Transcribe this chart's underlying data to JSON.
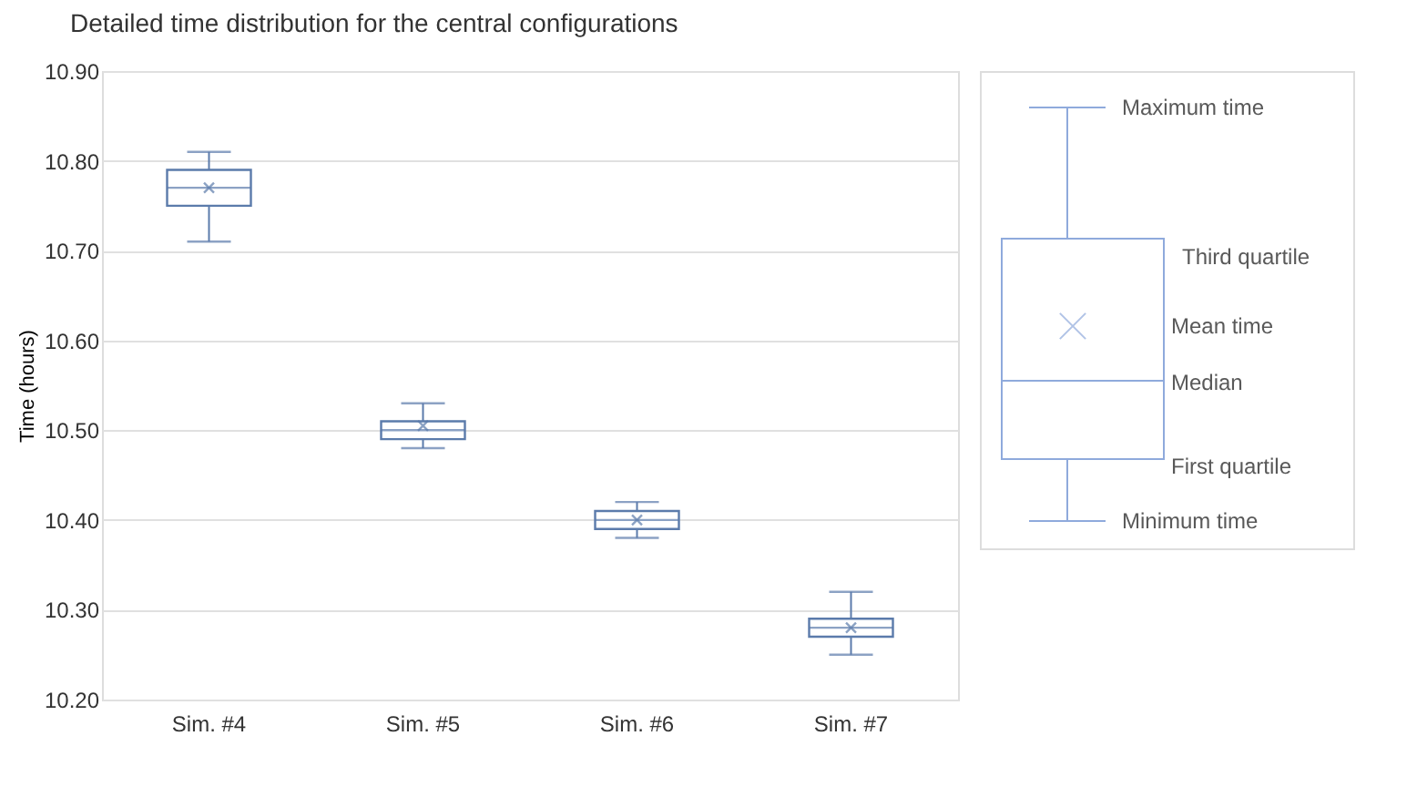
{
  "chart_data": {
    "type": "box",
    "title": "Detailed time distribution for the central configurations",
    "ylabel": "Time (hours)",
    "categories": [
      "Sim. #4",
      "Sim. #5",
      "Sim. #6",
      "Sim. #7"
    ],
    "boxes": [
      {
        "low": 10.71,
        "q1": 10.75,
        "median": 10.77,
        "q3": 10.79,
        "high": 10.81,
        "mean": 10.77
      },
      {
        "low": 10.48,
        "q1": 10.49,
        "median": 10.5,
        "q3": 10.51,
        "high": 10.53,
        "mean": 10.505
      },
      {
        "low": 10.38,
        "q1": 10.39,
        "median": 10.4,
        "q3": 10.41,
        "high": 10.42,
        "mean": 10.4
      },
      {
        "low": 10.25,
        "q1": 10.27,
        "median": 10.28,
        "q3": 10.29,
        "high": 10.32,
        "mean": 10.28
      }
    ],
    "color": "#5b7bab",
    "ylim": [
      10.2,
      10.9
    ],
    "yticks": [
      {
        "value": 10.2,
        "label": "10.20"
      },
      {
        "value": 10.3,
        "label": "10.30"
      },
      {
        "value": 10.4,
        "label": "10.40"
      },
      {
        "value": 10.5,
        "label": "10.50"
      },
      {
        "value": 10.6,
        "label": "10.60"
      },
      {
        "value": 10.7,
        "label": "10.70"
      },
      {
        "value": 10.8,
        "label": "10.80"
      },
      {
        "value": 10.9,
        "label": "10.90"
      }
    ],
    "grid": "y",
    "marker": "cross",
    "annotations": [
      "Maximum time",
      "Third quartile",
      "Mean time",
      "Median",
      "First quartile",
      "Minimum time"
    ]
  }
}
